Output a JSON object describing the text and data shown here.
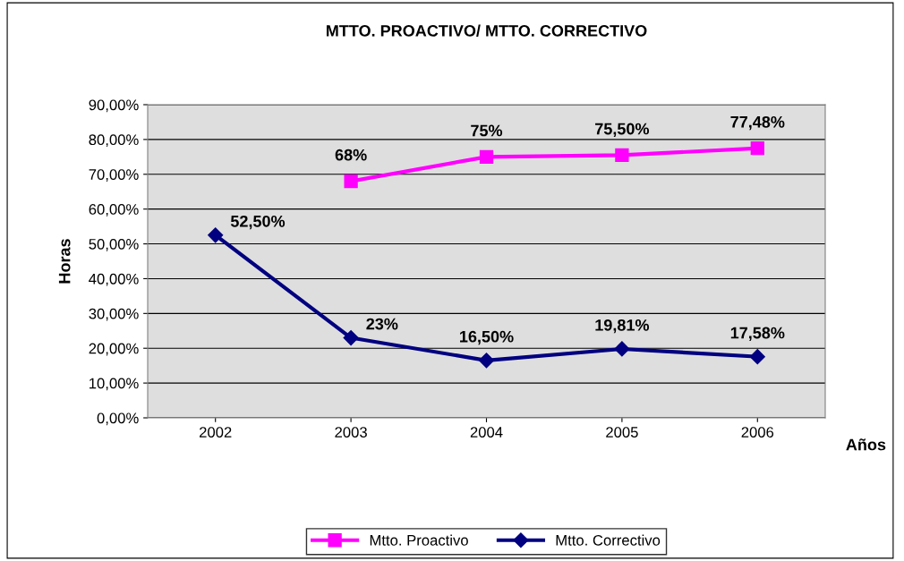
{
  "chart_data": {
    "type": "line",
    "title": "MTTO. PROACTIVO/ MTTO. CORRECTIVO",
    "xlabel": "Años",
    "ylabel": "Horas",
    "categories": [
      "2002",
      "2003",
      "2004",
      "2005",
      "2006"
    ],
    "series": [
      {
        "name": "Mtto. Proactivo",
        "color": "#ff00ff",
        "marker": "square",
        "values": [
          null,
          68,
          75,
          75.5,
          77.48
        ],
        "value_labels": [
          null,
          "68%",
          "75%",
          "75,50%",
          "77,48%"
        ]
      },
      {
        "name": "Mtto. Correctivo",
        "color": "#000080",
        "marker": "diamond",
        "values": [
          52.5,
          23,
          16.5,
          19.81,
          17.58
        ],
        "value_labels": [
          "52,50%",
          "23%",
          "16,50%",
          "19,81%",
          "17,58%"
        ]
      }
    ],
    "ylim": [
      0,
      90
    ],
    "yticks": [
      {
        "value": 0,
        "label": "0,00%"
      },
      {
        "value": 10,
        "label": "10,00%"
      },
      {
        "value": 20,
        "label": "20,00%"
      },
      {
        "value": 30,
        "label": "30,00%"
      },
      {
        "value": 40,
        "label": "40,00%"
      },
      {
        "value": 50,
        "label": "50,00%"
      },
      {
        "value": 60,
        "label": "60,00%"
      },
      {
        "value": 70,
        "label": "70,00%"
      },
      {
        "value": 80,
        "label": "80,00%"
      },
      {
        "value": 90,
        "label": "90,00%"
      }
    ],
    "grid": "y",
    "legend": "bottom",
    "line_style": "solid"
  }
}
